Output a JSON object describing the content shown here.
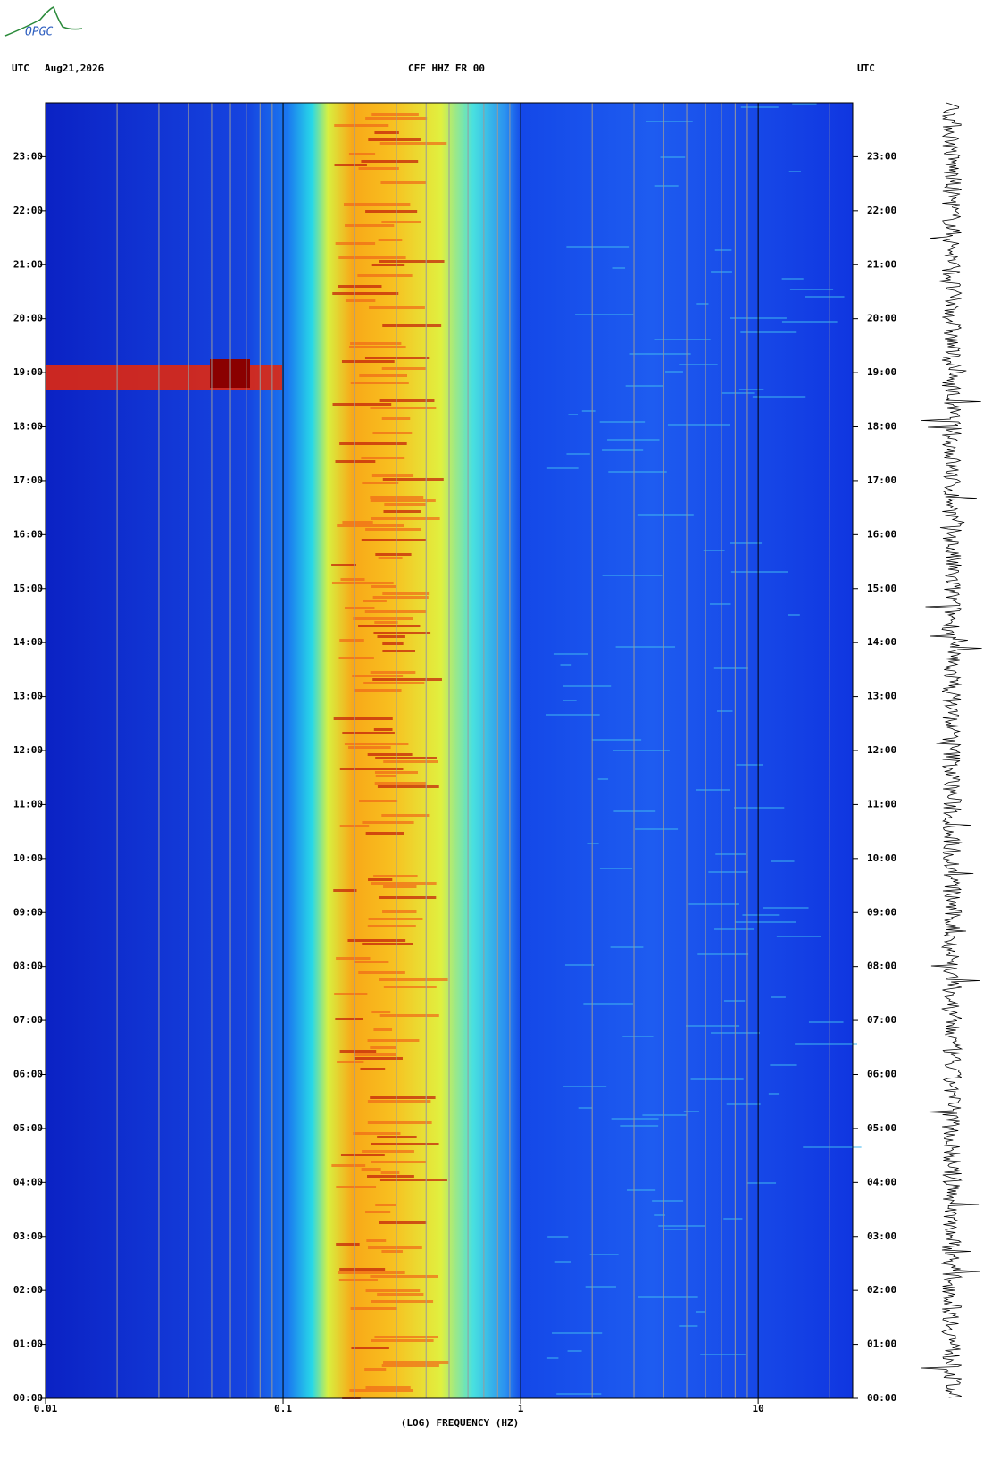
{
  "logo": "OPGC",
  "header": {
    "left_tz": "UTC",
    "date": "Aug21,2026",
    "station": "CFF HHZ FR 00",
    "right_tz": "UTC"
  },
  "chart_data": {
    "type": "spectrogram",
    "x_label": "(LOG) FREQUENCY (HZ)",
    "xlog": true,
    "xlim": [
      0.01,
      25
    ],
    "xticks": [
      0.01,
      0.1,
      1,
      10
    ],
    "xminor": [
      0.02,
      0.03,
      0.04,
      0.05,
      0.06,
      0.07,
      0.08,
      0.09,
      0.2,
      0.3,
      0.4,
      0.5,
      0.6,
      0.7,
      0.8,
      0.9,
      2,
      3,
      4,
      5,
      6,
      7,
      8,
      9,
      20
    ],
    "ylim": [
      0,
      24
    ],
    "yticks": [
      {
        "value": 0,
        "label": "00:00"
      },
      {
        "value": 1,
        "label": "01:00"
      },
      {
        "value": 2,
        "label": "02:00"
      },
      {
        "value": 3,
        "label": "03:00"
      },
      {
        "value": 4,
        "label": "04:00"
      },
      {
        "value": 5,
        "label": "05:00"
      },
      {
        "value": 6,
        "label": "06:00"
      },
      {
        "value": 7,
        "label": "07:00"
      },
      {
        "value": 8,
        "label": "08:00"
      },
      {
        "value": 9,
        "label": "09:00"
      },
      {
        "value": 10,
        "label": "10:00"
      },
      {
        "value": 11,
        "label": "11:00"
      },
      {
        "value": 12,
        "label": "12:00"
      },
      {
        "value": 13,
        "label": "13:00"
      },
      {
        "value": 14,
        "label": "14:00"
      },
      {
        "value": 15,
        "label": "15:00"
      },
      {
        "value": 16,
        "label": "16:00"
      },
      {
        "value": 17,
        "label": "17:00"
      },
      {
        "value": 18,
        "label": "18:00"
      },
      {
        "value": 19,
        "label": "19:00"
      },
      {
        "value": 20,
        "label": "20:00"
      },
      {
        "value": 21,
        "label": "21:00"
      },
      {
        "value": 22,
        "label": "22:00"
      },
      {
        "value": 23,
        "label": "23:00"
      }
    ]
  }
}
